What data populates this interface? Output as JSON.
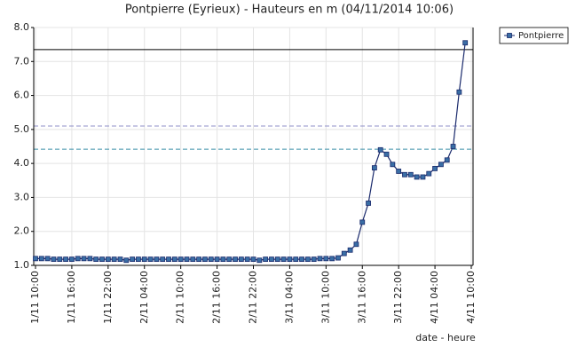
{
  "chart_data": {
    "type": "line",
    "title": "Pontpierre (Eyrieux) - Hauteurs en m (04/11/2014 10:06)",
    "x_label": "date - heure",
    "categories": [
      "1/11 10:00",
      null,
      null,
      null,
      null,
      null,
      "1/11 16:00",
      null,
      null,
      null,
      null,
      null,
      "1/11 22:00",
      null,
      null,
      null,
      null,
      null,
      "2/11 04:00",
      null,
      null,
      null,
      null,
      null,
      "2/11 10:00",
      null,
      null,
      null,
      null,
      null,
      "2/11 16:00",
      null,
      null,
      null,
      null,
      null,
      "2/11 22:00",
      null,
      null,
      null,
      null,
      null,
      "3/11 04:00",
      null,
      null,
      null,
      null,
      null,
      "3/11 10:00",
      null,
      null,
      null,
      null,
      null,
      "3/11 16:00",
      null,
      null,
      null,
      null,
      null,
      "3/11 22:00",
      null,
      null,
      null,
      null,
      null,
      "4/11 04:00",
      null,
      null,
      null,
      null,
      null,
      "4/11 10:00"
    ],
    "series": [
      {
        "name": "Pontpierre",
        "color": "#1a2a6c",
        "marker_color": "#3a6ea5",
        "values": [
          1.2,
          1.2,
          1.2,
          1.18,
          1.18,
          1.18,
          1.18,
          1.2,
          1.2,
          1.2,
          1.18,
          1.18,
          1.18,
          1.18,
          1.18,
          1.15,
          1.18,
          1.18,
          1.18,
          1.18,
          1.18,
          1.18,
          1.18,
          1.18,
          1.18,
          1.18,
          1.18,
          1.18,
          1.18,
          1.18,
          1.18,
          1.18,
          1.18,
          1.18,
          1.18,
          1.18,
          1.18,
          1.15,
          1.18,
          1.18,
          1.18,
          1.18,
          1.18,
          1.18,
          1.18,
          1.18,
          1.18,
          1.2,
          1.2,
          1.2,
          1.22,
          1.35,
          1.45,
          1.62,
          2.27,
          2.83,
          3.87,
          4.4,
          4.27,
          3.97,
          3.77,
          3.67,
          3.67,
          3.6,
          3.6,
          3.7,
          3.85,
          3.97,
          4.1,
          4.5,
          6.1,
          7.55,
          null
        ]
      }
    ],
    "ylim": [
      1.0,
      8.0
    ],
    "yticks": [
      {
        "value": 1.0,
        "label": "1.0"
      },
      {
        "value": 2.0,
        "label": "2.0"
      },
      {
        "value": 3.0,
        "label": "3.0"
      },
      {
        "value": 4.0,
        "label": "4.0"
      },
      {
        "value": 5.0,
        "label": "5.0"
      },
      {
        "value": 6.0,
        "label": "6.0"
      },
      {
        "value": 7.0,
        "label": "7.0"
      },
      {
        "value": 8.0,
        "label": "8.0"
      }
    ],
    "reference_lines": [
      {
        "value": 7.35,
        "color": "#000000",
        "style": "solid"
      },
      {
        "value": 5.1,
        "color": "#8f8fc8",
        "style": "dashed"
      },
      {
        "value": 4.42,
        "color": "#3a8fa8",
        "style": "dashed"
      }
    ],
    "grid": true,
    "legend": "top-right"
  }
}
